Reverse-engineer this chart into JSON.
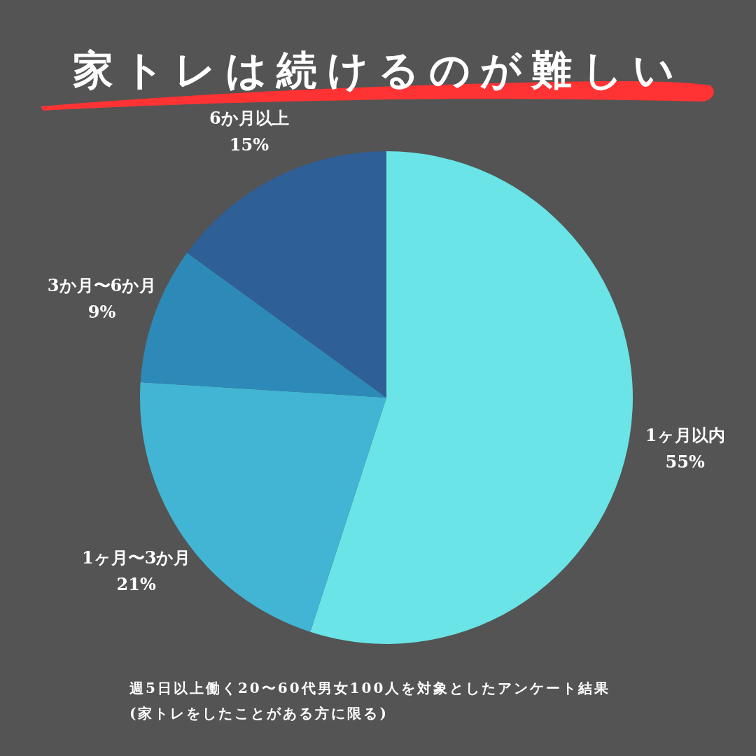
{
  "chart_data": {
    "type": "pie",
    "title": "家トレは続けるのが難しい",
    "categories": [
      "1ヶ月以内",
      "1ヶ月〜3か月",
      "3か月〜6か月",
      "6か月以上"
    ],
    "values": [
      55,
      21,
      9,
      15
    ],
    "value_labels": [
      "55%",
      "21%",
      "9%",
      "15%"
    ],
    "colors": [
      "#6ae4e6",
      "#42b5d4",
      "#2d8ab8",
      "#2e5f96"
    ],
    "annotations": [
      "週5日以上働く20〜60代男女100人を対象としたアンケート結果",
      "(家トレをしたことがある方に限る)"
    ]
  }
}
